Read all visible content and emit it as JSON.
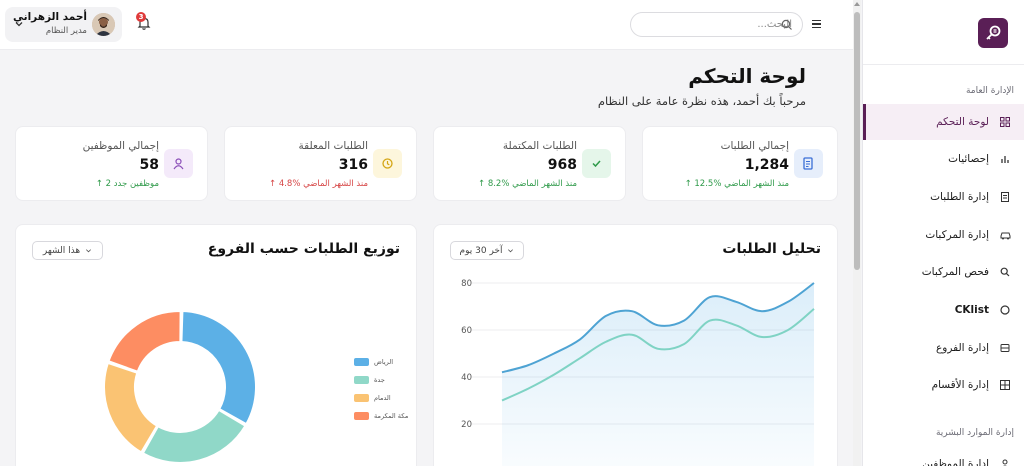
{
  "sidebar": {
    "section_general": "الإدارة العامة",
    "section_hr": "إدارة الموارد البشرية",
    "items": [
      {
        "label": "لوحة التحكم",
        "icon": "dashboard-icon",
        "active": true
      },
      {
        "label": "إحصائيات",
        "icon": "stats-icon",
        "active": false
      },
      {
        "label": "إدارة الطلبات",
        "icon": "orders-icon",
        "active": false
      },
      {
        "label": "إدارة المركبات",
        "icon": "vehicles-icon",
        "active": false
      },
      {
        "label": "فحص المركبات",
        "icon": "inspect-icon",
        "active": false
      },
      {
        "label": "CKlist",
        "icon": "checklist-icon",
        "active": false
      },
      {
        "label": "إدارة الفروع",
        "icon": "branches-icon",
        "active": false
      },
      {
        "label": "إدارة الأقسام",
        "icon": "departments-icon",
        "active": false
      },
      {
        "label": "إدارة الموظفين",
        "icon": "employees-icon",
        "active": false
      }
    ]
  },
  "topbar": {
    "search_placeholder": "البحث...",
    "notification_count": "3",
    "user_name": "أحمد الزهراني",
    "user_role": "مدير النظام"
  },
  "header": {
    "title": "لوحة التحكم",
    "subtitle": "مرحباً بك أحمد، هذه نظرة عامة على النظام"
  },
  "stats": [
    {
      "label": "إجمالي الطلبات",
      "value": "1,284",
      "change": "12.5% منذ الشهر الماضي",
      "trend": "up",
      "icon": "document-icon",
      "icon_bg": "#e6eefb",
      "icon_color": "#3b6fd6"
    },
    {
      "label": "الطلبات المكتملة",
      "value": "968",
      "change": "8.2% منذ الشهر الماضي",
      "trend": "up",
      "icon": "check-icon",
      "icon_bg": "#e5f6ea",
      "icon_color": "#2f9a4a"
    },
    {
      "label": "الطلبات المعلقة",
      "value": "316",
      "change": "4.8% منذ الشهر الماضي",
      "trend": "down",
      "icon": "clock-icon",
      "icon_bg": "#fdf6dc",
      "icon_color": "#d4a514"
    },
    {
      "label": "إجمالي الموظفين",
      "value": "58",
      "change": "2 موظفين جدد",
      "trend": "up",
      "icon": "user-icon",
      "icon_bg": "#f4eafa",
      "icon_color": "#8b4fb8"
    }
  ],
  "panels": {
    "orders_analysis": {
      "title": "تحليل الطلبات",
      "period": "آخر 30 يوم"
    },
    "branch_distribution": {
      "title": "توزيع الطلبات حسب الفروع",
      "period": "هذا الشهر"
    }
  },
  "chart_data": [
    {
      "type": "area",
      "title": "تحليل الطلبات",
      "ylim": [
        0,
        80
      ],
      "y_ticks": [
        20,
        40,
        60,
        80
      ],
      "grid": true,
      "x": [
        0,
        1,
        2,
        3,
        4,
        5,
        6,
        7,
        8,
        9,
        10,
        11,
        12
      ],
      "series": [
        {
          "color": "#4ea3d3",
          "values": [
            42,
            45,
            50,
            56,
            66,
            68,
            62,
            64,
            74,
            72,
            68,
            72,
            80
          ]
        },
        {
          "color": "#7fd3c4",
          "values": [
            30,
            35,
            41,
            48,
            55,
            58,
            52,
            54,
            64,
            62,
            57,
            60,
            69
          ]
        }
      ]
    },
    {
      "type": "pie",
      "title": "توزيع الطلبات حسب الفروع",
      "labels": [
        "الرياض",
        "جدة",
        "الدمام",
        "مكة المكرمة"
      ],
      "values": [
        33,
        25,
        22,
        20
      ],
      "colors": [
        "#5cb0e6",
        "#90d8c8",
        "#fac373",
        "#fd8d62"
      ],
      "legend": "right"
    }
  ]
}
